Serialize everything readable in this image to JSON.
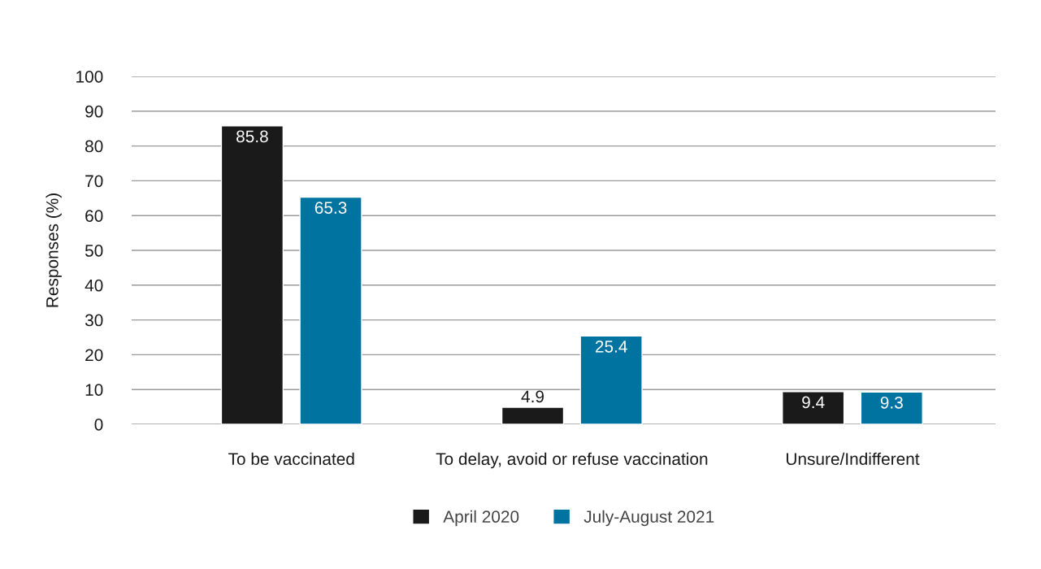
{
  "chart_data": {
    "type": "bar",
    "ylabel": "Responses (%)",
    "categories": [
      "To be vaccinated",
      "To delay, avoid or refuse vaccination",
      "Unsure/Indifferent"
    ],
    "series": [
      {
        "name": "April 2020",
        "color": "#1a1a1a",
        "values": [
          85.8,
          4.9,
          9.4
        ]
      },
      {
        "name": "July-August 2021",
        "color": "#0073a0",
        "values": [
          65.3,
          25.4,
          9.3
        ]
      }
    ],
    "ylim": [
      0,
      100
    ],
    "yticks": [
      0,
      10,
      20,
      30,
      40,
      50,
      60,
      70,
      80,
      90,
      100
    ],
    "grid": "y",
    "legend": "bottom",
    "data_labels": true
  }
}
